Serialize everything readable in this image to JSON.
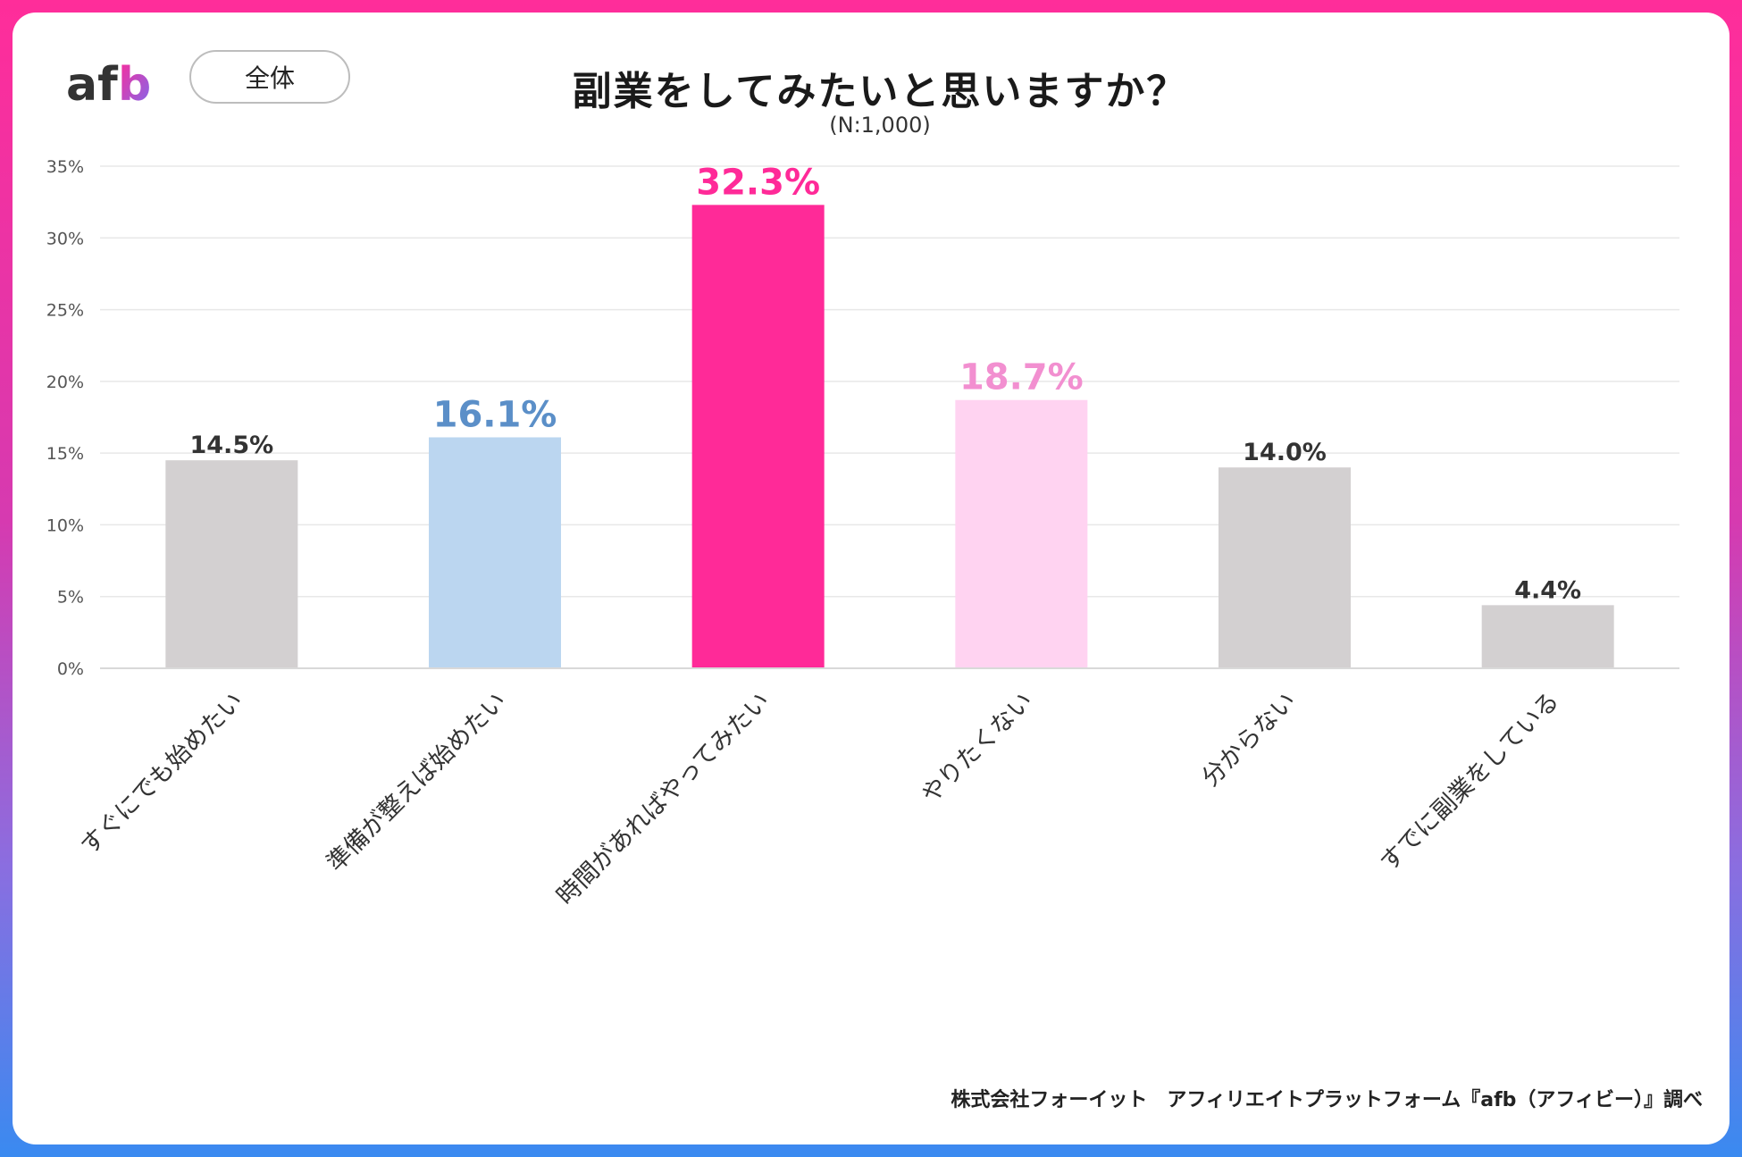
{
  "header": {
    "logo_text": "afb",
    "scope_label": "全体",
    "title": "副業をしてみたいと思いますか？",
    "subtitle": "(N:1,000)"
  },
  "footer": {
    "source": "株式会社フォーイット　アフィリエイトプラットフォーム『afb（アフィビー）』調べ"
  },
  "colors": {
    "gray": "#d3d0d1",
    "blue_bar": "#bbd6f0",
    "blue_label": "#5b8fc8",
    "pink": "#ff2a98",
    "light_pink_bar": "#ffd3f1",
    "light_pink_label": "#f28fd0",
    "dark_label": "#333333",
    "grid": "#e8e8e8",
    "axis_text": "#555555"
  },
  "chart_data": {
    "type": "bar",
    "title": "副業をしてみたいと思いますか？",
    "subtitle": "(N:1,000)",
    "xlabel": "",
    "ylabel": "",
    "ylim": [
      0,
      35
    ],
    "yticks": [
      0,
      5,
      10,
      15,
      20,
      25,
      30,
      35
    ],
    "ytick_labels": [
      "0%",
      "5%",
      "10%",
      "15%",
      "20%",
      "25%",
      "30%",
      "35%"
    ],
    "grid": true,
    "categories": [
      "すぐにでも始めたい",
      "準備が整えば始めたい",
      "時間があればやってみたい",
      "やりたくない",
      "分からない",
      "すでに副業をしている"
    ],
    "values": [
      14.5,
      16.1,
      32.3,
      18.7,
      14.0,
      4.4
    ],
    "value_labels": [
      "14.5%",
      "16.1%",
      "32.3%",
      "18.7%",
      "14.0%",
      "4.4%"
    ],
    "bar_colors": [
      "#d3d0d1",
      "#bbd6f0",
      "#ff2a98",
      "#ffd3f1",
      "#d3d0d1",
      "#d3d0d1"
    ],
    "label_colors": [
      "#333333",
      "#5b8fc8",
      "#ff2a98",
      "#f28fd0",
      "#333333",
      "#333333"
    ],
    "label_emphasis": [
      "normal",
      "large",
      "large",
      "large",
      "normal",
      "normal"
    ]
  }
}
